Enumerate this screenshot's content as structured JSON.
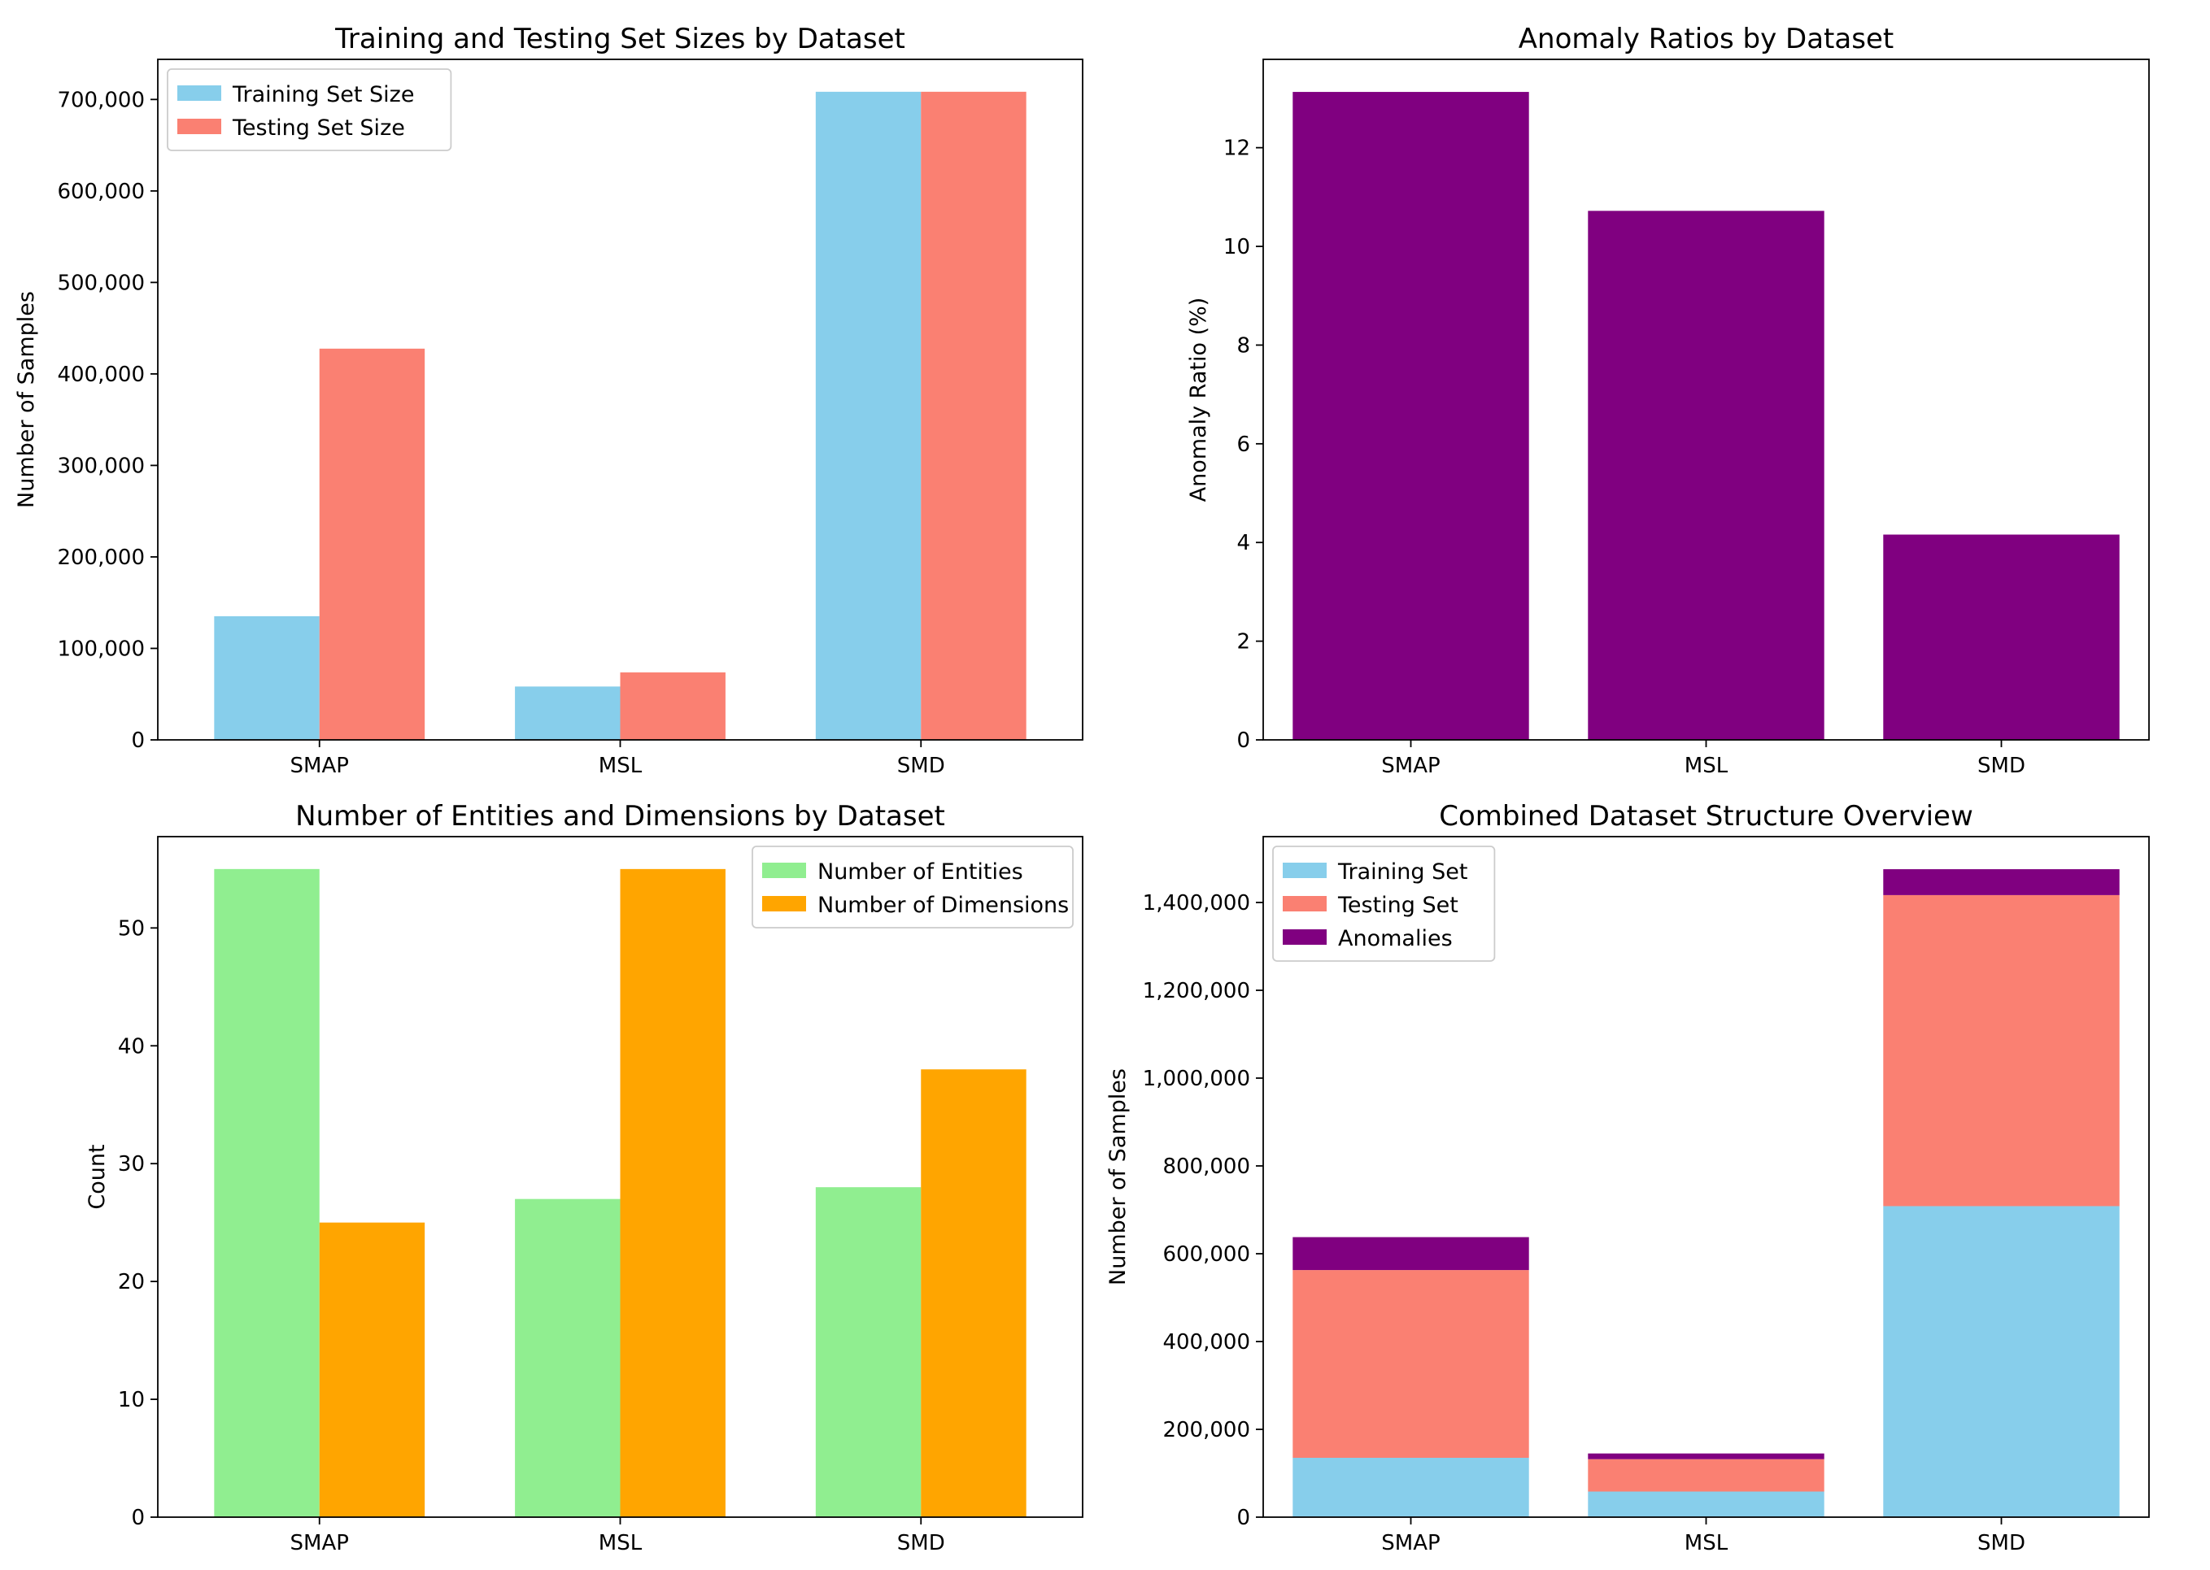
{
  "chart_data": [
    {
      "type": "bar",
      "title": "Training and Testing Set Sizes by Dataset",
      "xlabel": "",
      "ylabel": "Number of Samples",
      "categories": [
        "SMAP",
        "MSL",
        "SMD"
      ],
      "series": [
        {
          "name": "Training Set Size",
          "color": "#87CEEB",
          "values": [
            135183,
            58317,
            708405
          ]
        },
        {
          "name": "Testing Set Size",
          "color": "#FA8072",
          "values": [
            427617,
            73729,
            708420
          ]
        }
      ],
      "ylim": [
        0,
        743841
      ],
      "yticks": [
        0,
        100000,
        200000,
        300000,
        400000,
        500000,
        600000,
        700000
      ],
      "ytick_labels": [
        "0",
        "100,000",
        "200,000",
        "300,000",
        "400,000",
        "500,000",
        "600,000",
        "700,000"
      ],
      "legend": "top-left"
    },
    {
      "type": "bar",
      "title": "Anomaly Ratios by Dataset",
      "xlabel": "",
      "ylabel": "Anomaly Ratio (%)",
      "categories": [
        "SMAP",
        "MSL",
        "SMD"
      ],
      "series": [
        {
          "name": "Anomaly Ratio",
          "color": "#800080",
          "values": [
            13.13,
            10.72,
            4.16
          ]
        }
      ],
      "ylim": [
        0,
        13.79
      ],
      "yticks": [
        0,
        2,
        4,
        6,
        8,
        10,
        12
      ],
      "ytick_labels": [
        "0",
        "2",
        "4",
        "6",
        "8",
        "10",
        "12"
      ],
      "legend": "none"
    },
    {
      "type": "bar",
      "title": "Number of Entities and Dimensions by Dataset",
      "xlabel": "",
      "ylabel": "Count",
      "categories": [
        "SMAP",
        "MSL",
        "SMD"
      ],
      "series": [
        {
          "name": "Number of Entities",
          "color": "#90EE90",
          "values": [
            55,
            27,
            28
          ]
        },
        {
          "name": "Number of Dimensions",
          "color": "#FFA500",
          "values": [
            25,
            55,
            38
          ]
        }
      ],
      "ylim": [
        0,
        57.75
      ],
      "yticks": [
        0,
        10,
        20,
        30,
        40,
        50
      ],
      "ytick_labels": [
        "0",
        "10",
        "20",
        "30",
        "40",
        "50"
      ],
      "legend": "top-right"
    },
    {
      "type": "bar",
      "stacked": true,
      "title": "Combined Dataset Structure Overview",
      "xlabel": "",
      "ylabel": "Number of Samples",
      "categories": [
        "SMAP",
        "MSL",
        "SMD"
      ],
      "series": [
        {
          "name": "Training Set",
          "color": "#87CEEB",
          "values": [
            135183,
            58317,
            708405
          ]
        },
        {
          "name": "Testing Set",
          "color": "#FA8072",
          "values": [
            427617,
            73729,
            708420
          ]
        },
        {
          "name": "Anomalies",
          "color": "#800080",
          "values": [
            75000,
            13000,
            59000
          ]
        }
      ],
      "ylim": [
        0,
        1550000
      ],
      "yticks": [
        0,
        200000,
        400000,
        600000,
        800000,
        1000000,
        1200000,
        1400000
      ],
      "ytick_labels": [
        "0",
        "200,000",
        "400,000",
        "600,000",
        "800,000",
        "1,000,000",
        "1,200,000",
        "1,400,000"
      ],
      "legend": "top-left"
    }
  ]
}
